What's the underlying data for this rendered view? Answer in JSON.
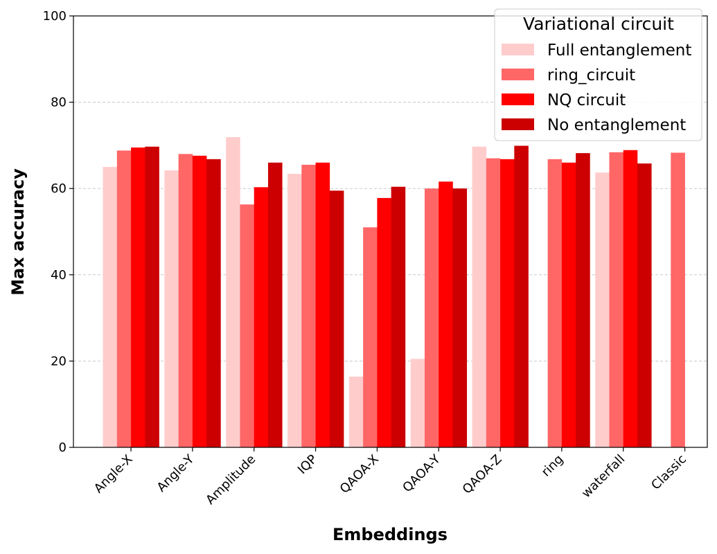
{
  "chart_data": {
    "type": "bar",
    "title": "",
    "xlabel": "Embeddings",
    "ylabel": "Max accuracy",
    "ylim": [
      0,
      100
    ],
    "yticks": [
      "0",
      "20",
      "40",
      "60",
      "80",
      "100"
    ],
    "grid": "y-dashed",
    "categories": [
      "Angle-X",
      "Angle-Y",
      "Amplitude",
      "IQP",
      "QAOA-X",
      "QAOA-Y",
      "QAOA-Z",
      "ring",
      "waterfall",
      "Classic"
    ],
    "legend": {
      "title": "Variational circuit",
      "position": "top-right"
    },
    "series": [
      {
        "name": "Full entanglement",
        "color": "#ffcccc",
        "values": [
          65.0,
          64.2,
          71.9,
          63.4,
          16.4,
          20.5,
          69.7,
          null,
          63.7,
          null
        ]
      },
      {
        "name": "ring_circuit",
        "color": "#ff6666",
        "values": [
          68.8,
          68.0,
          56.3,
          65.5,
          51.0,
          60.0,
          67.0,
          66.8,
          68.4,
          68.3
        ]
      },
      {
        "name": "NQ circuit",
        "color": "#ff0000",
        "values": [
          69.5,
          67.6,
          60.3,
          66.0,
          57.8,
          61.6,
          66.8,
          66.0,
          68.9,
          null
        ]
      },
      {
        "name": "No entanglement",
        "color": "#cc0000",
        "values": [
          69.7,
          66.8,
          66.0,
          59.5,
          60.4,
          60.0,
          69.9,
          68.2,
          65.8,
          null
        ]
      }
    ]
  }
}
